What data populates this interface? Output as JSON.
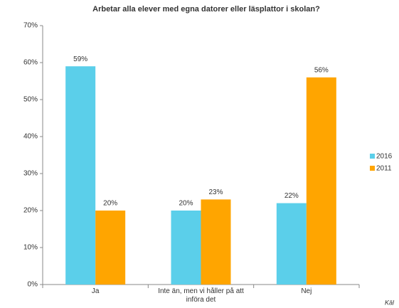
{
  "chart_data": {
    "type": "bar",
    "title": "Arbetar alla elever med egna datorer eller läsplattor i skolan?",
    "categories": [
      "Ja",
      "Inte än, men vi håller på att införa det",
      "Nej"
    ],
    "series": [
      {
        "name": "2016",
        "color": "#5bcfea",
        "values": [
          59,
          20,
          22
        ],
        "value_labels": [
          "59%",
          "20%",
          "22%"
        ]
      },
      {
        "name": "2011",
        "color": "#ffa500",
        "values": [
          20,
          23,
          56
        ],
        "value_labels": [
          "20%",
          "23%",
          "56%"
        ]
      }
    ],
    "ylim": [
      0,
      70
    ],
    "yticks": [
      {
        "value": 0,
        "label": "0%"
      },
      {
        "value": 10,
        "label": "10%"
      },
      {
        "value": 20,
        "label": "20%"
      },
      {
        "value": 30,
        "label": "30%"
      },
      {
        "value": 40,
        "label": "40%"
      },
      {
        "value": 50,
        "label": "50%"
      },
      {
        "value": 60,
        "label": "60%"
      },
      {
        "value": 70,
        "label": "70%"
      }
    ],
    "legend": "right",
    "source": "Käl"
  }
}
